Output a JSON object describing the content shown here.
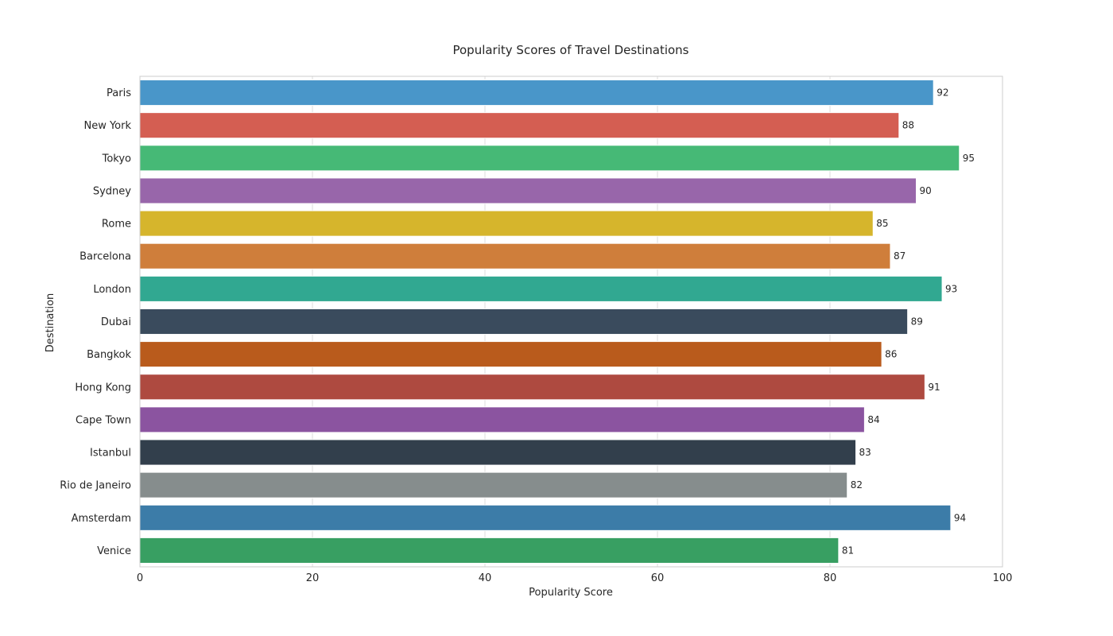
{
  "chart_data": {
    "type": "bar",
    "orientation": "horizontal",
    "title": "Popularity Scores of Travel Destinations",
    "xlabel": "Popularity Score",
    "ylabel": "Destination",
    "xlim": [
      0,
      100
    ],
    "xticks": [
      0,
      20,
      40,
      60,
      80,
      100
    ],
    "grid": true,
    "legend": "none",
    "categories": [
      "Paris",
      "New York",
      "Tokyo",
      "Sydney",
      "Rome",
      "Barcelona",
      "London",
      "Dubai",
      "Bangkok",
      "Hong Kong",
      "Cape Town",
      "Istanbul",
      "Rio de Janeiro",
      "Amsterdam",
      "Venice"
    ],
    "values": [
      92,
      88,
      95,
      90,
      85,
      87,
      93,
      89,
      86,
      91,
      84,
      83,
      82,
      94,
      81
    ],
    "colors": [
      "#4996c9",
      "#d45e52",
      "#46b976",
      "#9866aa",
      "#d6b52c",
      "#cf7e3b",
      "#31a891",
      "#3a4b5d",
      "#b95b1c",
      "#ae4a40",
      "#8b54a0",
      "#323f4c",
      "#868d8d",
      "#3c7ca8",
      "#389f62"
    ]
  }
}
